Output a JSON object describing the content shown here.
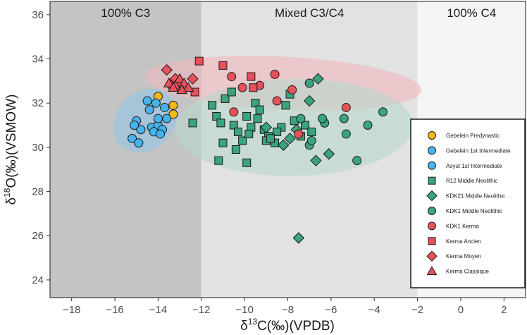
{
  "chart_data": {
    "type": "scatter",
    "title": "",
    "xlabel": "δ¹³C(‰)(VPDB)",
    "xlabel_parts": {
      "prefix": "δ",
      "sup": "13",
      "rest": "C(‰)(VPDB)"
    },
    "ylabel": "δ¹⁸O(‰)(VSMOW)",
    "ylabel_parts": {
      "prefix": "δ",
      "sup": "18",
      "rest": "O(‰)(VSMOW)"
    },
    "xlim": [
      -19,
      3
    ],
    "ylim": [
      23.2,
      36.6
    ],
    "xticks": [
      -18,
      -16,
      -14,
      -12,
      -10,
      -8,
      -6,
      -4,
      -2,
      0,
      2
    ],
    "xtick_labels": [
      "−18",
      "−16",
      "−14",
      "−12",
      "−10",
      "−8",
      "−6",
      "−4",
      "−2",
      "0",
      "2"
    ],
    "yticks": [
      24,
      26,
      28,
      30,
      32,
      34,
      36
    ],
    "ytick_labels": [
      "24",
      "26",
      "28",
      "30",
      "32",
      "34",
      "36"
    ],
    "regions": [
      {
        "label": "100% C3",
        "x0": -19,
        "x1": -12,
        "color": "#c4c4c4"
      },
      {
        "label": "Mixed C3/C4",
        "x0": -12,
        "x1": -2,
        "color": "#e2e2e2"
      },
      {
        "label": "100% C4",
        "x0": -2,
        "x1": 3,
        "color": "#f5f5f5"
      }
    ],
    "ellipses": [
      {
        "cx": -14.6,
        "cy": 31.2,
        "rx": 1.6,
        "ry": 1.3,
        "angle": 1.0,
        "color": "#8fc4ea",
        "opacity": 0.55
      },
      {
        "cx": -8.2,
        "cy": 32.9,
        "rx": 6.4,
        "ry": 1.2,
        "angle": -0.05,
        "color": "#f0b8bd",
        "opacity": 0.6
      },
      {
        "cx": -7.7,
        "cy": 30.9,
        "rx": 5.5,
        "ry": 2.2,
        "angle": 0.02,
        "color": "#b8d8cc",
        "opacity": 0.6
      }
    ],
    "series": [
      {
        "name": "Gebelein Predynastic",
        "marker": "circle",
        "color": "#f5b81b",
        "points": [
          [
            -14.0,
            32.3
          ],
          [
            -13.3,
            31.9
          ],
          [
            -13.3,
            31.5
          ]
        ]
      },
      {
        "name": "Gebelein 1st Intermediate",
        "marker": "circle",
        "color": "#47b3ea",
        "points": [
          [
            -14.5,
            32.1
          ],
          [
            -14.4,
            31.7
          ],
          [
            -15.0,
            31.2
          ],
          [
            -14.8,
            30.8
          ],
          [
            -15.2,
            30.4
          ],
          [
            -14.9,
            30.2
          ],
          [
            -14.3,
            30.9
          ],
          [
            -14.0,
            31.0
          ]
        ]
      },
      {
        "name": "Asyut 1st Intermediate",
        "marker": "circle",
        "color": "#47b3ea",
        "points": [
          [
            -13.7,
            31.8
          ],
          [
            -14.0,
            31.3
          ],
          [
            -13.6,
            31.3
          ],
          [
            -13.8,
            30.8
          ],
          [
            -14.2,
            30.7
          ],
          [
            -13.9,
            30.6
          ],
          [
            -15.1,
            31.0
          ],
          [
            -14.1,
            32.0
          ]
        ]
      },
      {
        "name": "R12 Middle Neolithic",
        "marker": "square",
        "color": "#3aa37f",
        "points": [
          [
            -11.5,
            31.9
          ],
          [
            -11.3,
            31.4
          ],
          [
            -11.1,
            31.1
          ],
          [
            -10.9,
            32.2
          ],
          [
            -10.6,
            32.5
          ],
          [
            -10.5,
            31.0
          ],
          [
            -10.3,
            30.7
          ],
          [
            -10.1,
            30.3
          ],
          [
            -9.9,
            31.4
          ],
          [
            -9.7,
            30.9
          ],
          [
            -9.5,
            32.0
          ],
          [
            -9.3,
            31.7
          ],
          [
            -9.1,
            30.8
          ],
          [
            -8.9,
            30.5
          ],
          [
            -8.6,
            30.2
          ],
          [
            -8.3,
            30.9
          ],
          [
            -8.1,
            31.9
          ],
          [
            -7.9,
            32.4
          ],
          [
            -7.7,
            31.2
          ],
          [
            -7.4,
            30.5
          ],
          [
            -7.2,
            31.0
          ],
          [
            -6.9,
            30.7
          ],
          [
            -11.0,
            30.2
          ],
          [
            -10.4,
            29.9
          ],
          [
            -9.8,
            30.6
          ],
          [
            -9.0,
            30.3
          ],
          [
            -8.5,
            30.7
          ],
          [
            -12.4,
            31.1
          ],
          [
            -9.9,
            29.3
          ],
          [
            -11.2,
            29.4
          ],
          [
            -9.4,
            31.3
          ],
          [
            -8.8,
            30.4
          ]
        ]
      },
      {
        "name": "KDK21 Middle Neolithic",
        "marker": "diamond",
        "color": "#3aa37f",
        "points": [
          [
            -6.6,
            33.1
          ],
          [
            -7.0,
            32.1
          ],
          [
            -7.6,
            30.8
          ],
          [
            -8.2,
            30.1
          ],
          [
            -6.1,
            29.7
          ],
          [
            -6.7,
            29.4
          ],
          [
            -7.5,
            25.9
          ],
          [
            -9.0,
            30.9
          ],
          [
            -7.9,
            30.4
          ]
        ]
      },
      {
        "name": "KDK1 Middle Neolithic",
        "marker": "circle",
        "color": "#3aa37f",
        "points": [
          [
            -3.6,
            31.6
          ],
          [
            -4.3,
            31.0
          ],
          [
            -5.4,
            31.3
          ],
          [
            -6.3,
            31.1
          ],
          [
            -6.4,
            31.3
          ],
          [
            -7.0,
            30.1
          ],
          [
            -6.9,
            30.3
          ],
          [
            -4.8,
            29.4
          ],
          [
            -7.4,
            31.3
          ],
          [
            -5.3,
            30.6
          ],
          [
            -7.0,
            32.9
          ]
        ]
      },
      {
        "name": "KDK1 Kerma",
        "marker": "circle",
        "color": "#e8505b",
        "points": [
          [
            -10.6,
            33.2
          ],
          [
            -10.1,
            32.7
          ],
          [
            -8.6,
            33.3
          ],
          [
            -7.8,
            32.6
          ],
          [
            -8.5,
            32.1
          ],
          [
            -10.5,
            31.6
          ],
          [
            -5.3,
            31.8
          ],
          [
            -7.5,
            30.6
          ],
          [
            -9.3,
            32.8
          ]
        ]
      },
      {
        "name": "Kerma Ancien",
        "marker": "square",
        "color": "#e8505b",
        "points": [
          [
            -12.1,
            33.9
          ],
          [
            -11.0,
            33.7
          ],
          [
            -9.7,
            33.2
          ],
          [
            -9.6,
            32.7
          ],
          [
            -12.3,
            32.5
          ]
        ]
      },
      {
        "name": "Kerma Moyen",
        "marker": "diamond",
        "color": "#e8505b",
        "points": [
          [
            -13.6,
            33.5
          ],
          [
            -13.2,
            33.1
          ],
          [
            -12.4,
            33.1
          ],
          [
            -13.0,
            32.8
          ],
          [
            -13.4,
            32.8
          ]
        ]
      },
      {
        "name": "Kerma Classique",
        "marker": "triangle",
        "color": "#e8505b",
        "points": [
          [
            -13.5,
            32.9
          ],
          [
            -13.2,
            32.8
          ],
          [
            -13.0,
            33.1
          ],
          [
            -12.8,
            32.9
          ],
          [
            -12.6,
            32.7
          ],
          [
            -12.9,
            32.6
          ],
          [
            -13.3,
            32.7
          ]
        ]
      }
    ],
    "legend": {
      "position": "bottom-right",
      "entries": [
        {
          "label": "Gebelein Predynastic",
          "marker": "circle",
          "color": "#f5b81b"
        },
        {
          "label": "Gebelein 1st Intermediate",
          "marker": "circle",
          "color": "#47b3ea"
        },
        {
          "label": "Asyut 1st Intermediate",
          "marker": "circle",
          "color": "#47b3ea"
        },
        {
          "label": "R12 Middle Neolithic",
          "marker": "square",
          "color": "#3aa37f"
        },
        {
          "label": "KDK21 Middle Neolithic",
          "marker": "diamond",
          "color": "#3aa37f"
        },
        {
          "label": "KDK1 Middle Neolithic",
          "marker": "circle",
          "color": "#3aa37f"
        },
        {
          "label": "KDK1 Kerma",
          "marker": "circle",
          "color": "#e8505b"
        },
        {
          "label": "Kerma Ancien",
          "marker": "square",
          "color": "#e8505b"
        },
        {
          "label": "Kerma Moyen",
          "marker": "diamond",
          "color": "#e8505b"
        },
        {
          "label": "Kerma Classique",
          "marker": "triangle",
          "color": "#e8505b"
        }
      ]
    }
  }
}
